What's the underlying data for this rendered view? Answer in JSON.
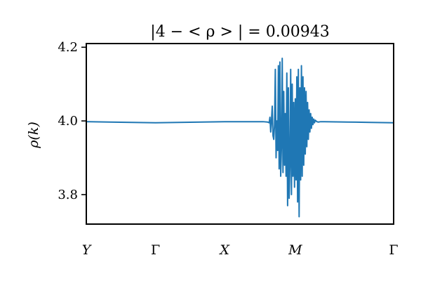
{
  "chart_data": {
    "type": "line",
    "title": "|4 − < ρ > | = 0.00943",
    "ylabel": "ρ(k)",
    "xlabel": "",
    "ylim": [
      3.72,
      4.21
    ],
    "xlim": [
      0,
      4
    ],
    "yticks": [
      3.8,
      4.0,
      4.2
    ],
    "ytick_labels": [
      "3.8",
      "4.0",
      "4.2"
    ],
    "xticks": [
      0,
      0.9,
      1.8,
      2.72,
      4
    ],
    "xtick_labels": [
      "Y",
      "Γ",
      "X",
      "M",
      "Γ"
    ],
    "grid": false,
    "legend": "none",
    "color": "#1f77b4",
    "series": [
      {
        "x": [
          0,
          0.3,
          0.6,
          0.9,
          1.2,
          1.5,
          1.8,
          2.1,
          2.3,
          2.36,
          2.38,
          2.39,
          2.4,
          2.41,
          2.42,
          2.43,
          2.44,
          2.45,
          2.46,
          2.47,
          2.48,
          2.49,
          2.5,
          2.51,
          2.52,
          2.53,
          2.54,
          2.55,
          2.56,
          2.57,
          2.58,
          2.59,
          2.6,
          2.61,
          2.62,
          2.63,
          2.64,
          2.65,
          2.66,
          2.67,
          2.68,
          2.69,
          2.7,
          2.71,
          2.72,
          2.73,
          2.74,
          2.75,
          2.76,
          2.77,
          2.78,
          2.79,
          2.8,
          2.81,
          2.82,
          2.83,
          2.84,
          2.85,
          2.86,
          2.87,
          2.88,
          2.89,
          2.9,
          2.91,
          2.92,
          2.93,
          2.94,
          2.95,
          2.96,
          2.97,
          2.98,
          3.0,
          3.02,
          3.05,
          3.1,
          3.4,
          3.7,
          4.0
        ],
        "y": [
          3.998,
          3.997,
          3.996,
          3.995,
          3.996,
          3.997,
          3.998,
          3.998,
          3.998,
          3.997,
          3.995,
          4.01,
          3.97,
          4.0,
          4.04,
          3.96,
          3.95,
          3.99,
          4.14,
          3.9,
          4.0,
          3.92,
          4.15,
          3.87,
          4.16,
          3.85,
          3.93,
          4.17,
          3.86,
          4.08,
          3.88,
          4.02,
          3.85,
          4.13,
          3.77,
          4.09,
          3.79,
          3.88,
          4.14,
          3.8,
          4.1,
          3.85,
          4.05,
          3.82,
          4.06,
          3.84,
          4.12,
          3.78,
          4.14,
          3.74,
          4.09,
          3.84,
          4.15,
          3.85,
          4.12,
          3.88,
          4.09,
          3.91,
          4.08,
          3.93,
          4.05,
          3.95,
          4.03,
          3.97,
          4.02,
          3.98,
          4.01,
          3.99,
          4.005,
          3.995,
          4.002,
          3.998,
          3.997,
          3.998,
          3.998,
          3.997,
          3.996,
          3.995
        ]
      }
    ]
  }
}
